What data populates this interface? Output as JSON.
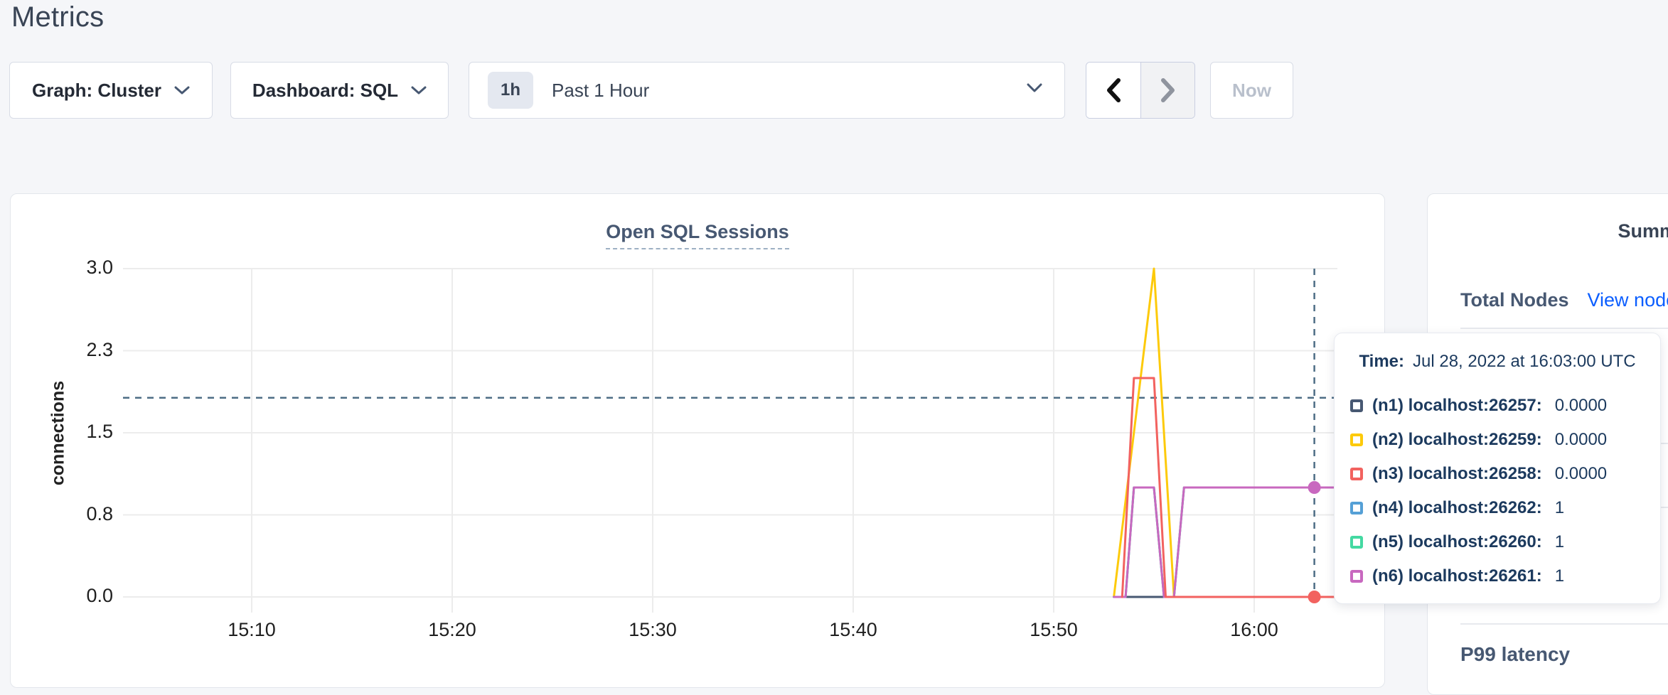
{
  "page": {
    "title": "Metrics"
  },
  "toolbar": {
    "graph_dropdown": "Graph: Cluster",
    "dashboard_dropdown": "Dashboard: SQL",
    "time_badge": "1h",
    "time_label": "Past 1 Hour",
    "now_label": "Now"
  },
  "chart_data": {
    "type": "line",
    "title": "Open SQL Sessions",
    "ylabel": "connections",
    "xlabel": "",
    "grid": true,
    "ylim": [
      0,
      3
    ],
    "x_domain": [
      "15:04:00",
      "16:04:10"
    ],
    "x_ticks": [
      "15:10",
      "15:20",
      "15:30",
      "15:40",
      "15:50",
      "16:00"
    ],
    "y_ticks": [
      {
        "label": "0.0",
        "value": 0
      },
      {
        "label": "0.8",
        "value": 0.75
      },
      {
        "label": "1.5",
        "value": 1.5
      },
      {
        "label": "2.3",
        "value": 2.25
      },
      {
        "label": "3.0",
        "value": 3
      }
    ],
    "series": [
      {
        "id": "n1",
        "name": "(n1) localhost:26257",
        "color": "#475872",
        "points": [
          [
            "15:53:30",
            0
          ],
          [
            "16:04:10",
            0
          ]
        ]
      },
      {
        "id": "n2",
        "name": "(n2) localhost:26259",
        "color": "#fdca0a",
        "points": [
          [
            "15:53:00",
            0
          ],
          [
            "15:55:00",
            3
          ],
          [
            "15:56:00",
            0
          ],
          [
            "16:04:10",
            0
          ]
        ]
      },
      {
        "id": "n4",
        "name": "(n4) localhost:26262",
        "color": "#55a0d6",
        "points": [
          [
            "15:53:00",
            0
          ],
          [
            "15:53:35",
            0
          ],
          [
            "15:54:00",
            1
          ],
          [
            "15:55:00",
            1
          ],
          [
            "15:55:30",
            0
          ],
          [
            "15:56:00",
            0
          ],
          [
            "15:56:30",
            1
          ],
          [
            "16:04:10",
            1
          ]
        ]
      },
      {
        "id": "n5",
        "name": "(n5) localhost:26260",
        "color": "#44d9a2",
        "points": [
          [
            "15:53:00",
            0
          ],
          [
            "15:53:35",
            0
          ],
          [
            "15:54:00",
            1
          ],
          [
            "15:55:00",
            1
          ],
          [
            "15:55:30",
            0
          ],
          [
            "15:56:00",
            0
          ],
          [
            "15:56:30",
            1
          ],
          [
            "16:04:10",
            1
          ]
        ]
      },
      {
        "id": "n6",
        "name": "(n6) localhost:26261",
        "color": "#c868bf",
        "points": [
          [
            "15:53:00",
            0
          ],
          [
            "15:53:35",
            0
          ],
          [
            "15:54:00",
            1
          ],
          [
            "15:55:00",
            1
          ],
          [
            "15:55:30",
            0
          ],
          [
            "15:56:00",
            0
          ],
          [
            "15:56:30",
            1
          ],
          [
            "16:04:10",
            1
          ]
        ]
      },
      {
        "id": "n3",
        "name": "(n3) localhost:26258",
        "color": "#f2625f",
        "points": [
          [
            "15:53:25",
            0
          ],
          [
            "15:54:00",
            2
          ],
          [
            "15:55:00",
            2
          ],
          [
            "15:55:35",
            0
          ],
          [
            "16:04:10",
            0
          ]
        ]
      }
    ],
    "crosshair": {
      "time": "16:03:00",
      "hover_value": 1.82
    },
    "highlight_dots": [
      {
        "time": "16:03:00",
        "value": 1,
        "color": "#c868bf"
      },
      {
        "time": "16:03:00",
        "value": 0,
        "color": "#f2625f"
      }
    ],
    "legend_position": "tooltip"
  },
  "tooltip": {
    "time_label": "Time:",
    "time_value": "Jul 28, 2022 at 16:03:00 UTC",
    "rows": [
      {
        "label": "(n1) localhost:26257:",
        "value": "0.0000",
        "color": "#475872"
      },
      {
        "label": "(n2) localhost:26259:",
        "value": "0.0000",
        "color": "#fdca0a"
      },
      {
        "label": "(n3) localhost:26258:",
        "value": "0.0000",
        "color": "#f2625f"
      },
      {
        "label": "(n4) localhost:26262:",
        "value": "1",
        "color": "#55a0d6"
      },
      {
        "label": "(n5) localhost:26260:",
        "value": "1",
        "color": "#44d9a2"
      },
      {
        "label": "(n6) localhost:26261:",
        "value": "1",
        "color": "#c868bf"
      }
    ]
  },
  "sidebar": {
    "title": "Summary",
    "total_nodes_label": "Total Nodes",
    "view_nodes_link": "View nodes",
    "p99_label": "P99 latency"
  }
}
